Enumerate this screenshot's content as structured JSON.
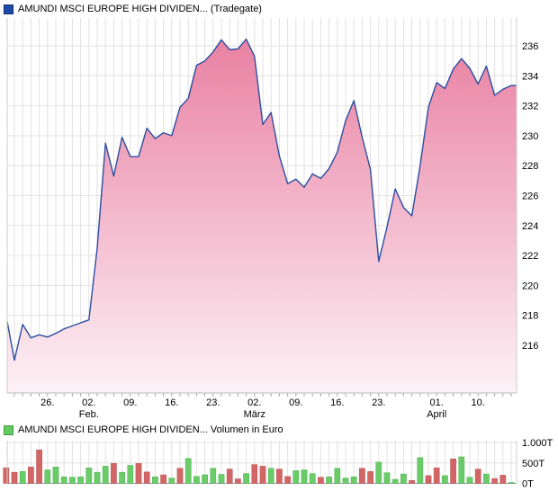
{
  "price_chart": {
    "title": "AMUNDI MSCI EUROPE HIGH DIVIDEN... (Tradegate)",
    "source_label": "(Tradegate)"
  },
  "volume_chart": {
    "title": "AMUNDI MSCI EUROPE HIGH DIVIDEN... Volumen in Euro",
    "unit_label": "Volumen in Euro"
  },
  "colors": {
    "line": "#2c4da0",
    "fill_top": "#e87da0",
    "fill_bottom": "#fdf1f6",
    "grid": "#e2e2e2",
    "axis": "#bbbbbb",
    "volume_up": "#69cc69",
    "volume_down": "#d26666",
    "legend_price": "#1d49a7",
    "legend_volume": "#63c963"
  },
  "chart_data": [
    {
      "type": "area",
      "title": "AMUNDI MSCI EUROPE HIGH DIVIDEN... (Tradegate)",
      "ylabel": "",
      "y_ticks": [
        236,
        234,
        232,
        230,
        228,
        226,
        224,
        222,
        220,
        218,
        216
      ],
      "ylim": [
        214.3,
        237.9
      ],
      "x_ticks": [
        {
          "label": "26.",
          "day": 5
        },
        {
          "label": "02.",
          "day": 10,
          "month": "Feb."
        },
        {
          "label": "09.",
          "day": 15
        },
        {
          "label": "16.",
          "day": 20
        },
        {
          "label": "23.",
          "day": 25
        },
        {
          "label": "02.",
          "day": 30,
          "month": "März"
        },
        {
          "label": "09.",
          "day": 35
        },
        {
          "label": "16.",
          "day": 40
        },
        {
          "label": "23.",
          "day": 45
        },
        {
          "label": "01.",
          "day": 52,
          "month": "April"
        },
        {
          "label": "10.",
          "day": 57
        }
      ],
      "values": [
        217.6,
        215.0,
        217.4,
        216.5,
        216.7,
        216.55,
        216.8,
        217.1,
        217.3,
        217.5,
        217.7,
        222.5,
        229.5,
        227.3,
        229.9,
        228.6,
        228.6,
        230.5,
        229.8,
        230.2,
        230.0,
        231.9,
        232.5,
        234.7,
        235.0,
        235.6,
        236.4,
        235.75,
        235.8,
        236.45,
        235.3,
        230.75,
        231.55,
        228.65,
        226.8,
        227.1,
        226.55,
        227.45,
        227.15,
        227.8,
        228.9,
        231.0,
        232.35,
        229.9,
        227.75,
        221.6,
        223.9,
        226.45,
        225.2,
        224.65,
        228.0,
        231.9,
        233.55,
        233.15,
        234.45,
        235.15,
        234.5,
        233.45,
        234.65,
        232.7,
        233.1,
        233.35
      ]
    },
    {
      "type": "bar",
      "title": "AMUNDI MSCI EUROPE HIGH DIVIDEN... Volumen in Euro",
      "ylabel": "Volumen in Euro",
      "y_ticks": [
        {
          "label": "1.000T",
          "value": 1000
        },
        {
          "label": "500T",
          "value": 500
        },
        {
          "label": "0T",
          "value": 0
        }
      ],
      "ylim": [
        0,
        1070
      ],
      "values": [
        380,
        270,
        290,
        400,
        820,
        330,
        400,
        160,
        150,
        160,
        380,
        270,
        420,
        490,
        270,
        440,
        490,
        280,
        160,
        210,
        130,
        370,
        610,
        170,
        210,
        370,
        220,
        350,
        110,
        240,
        460,
        420,
        370,
        350,
        170,
        310,
        330,
        240,
        150,
        160,
        370,
        130,
        160,
        370,
        290,
        520,
        260,
        100,
        230,
        70,
        630,
        190,
        380,
        190,
        600,
        650,
        150,
        350,
        230,
        120,
        200,
        20
      ],
      "directions": [
        "d",
        "d",
        "u",
        "d",
        "d",
        "u",
        "u",
        "u",
        "u",
        "u",
        "u",
        "u",
        "u",
        "d",
        "u",
        "u",
        "d",
        "d",
        "u",
        "d",
        "u",
        "d",
        "u",
        "u",
        "u",
        "u",
        "u",
        "d",
        "d",
        "u",
        "d",
        "d",
        "u",
        "d",
        "d",
        "u",
        "u",
        "u",
        "d",
        "u",
        "u",
        "u",
        "u",
        "d",
        "d",
        "u",
        "u",
        "u",
        "u",
        "d",
        "u",
        "d",
        "d",
        "u",
        "d",
        "u",
        "u",
        "d",
        "u",
        "d",
        "d",
        "u"
      ]
    }
  ]
}
